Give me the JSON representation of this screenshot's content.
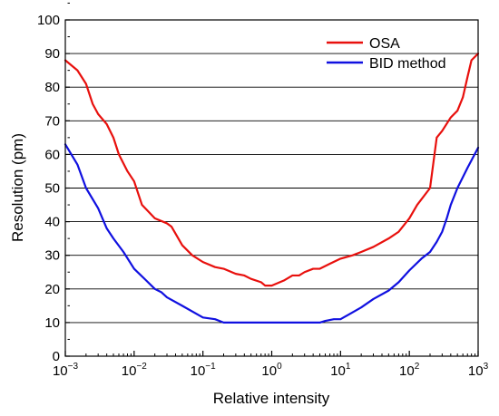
{
  "chart_data": {
    "type": "line",
    "title": "",
    "xlabel": "Relative intensity",
    "ylabel": "Resolution (pm)",
    "x_scale": "log",
    "xlim": [
      0.001,
      1000
    ],
    "ylim": [
      0,
      100
    ],
    "grid": "horizontal",
    "legend_position": "top-right",
    "x_ticks": [
      {
        "base": "10",
        "exp": "−3"
      },
      {
        "base": "10",
        "exp": "−2"
      },
      {
        "base": "10",
        "exp": "−1"
      },
      {
        "base": "10",
        "exp": "0"
      },
      {
        "base": "10",
        "exp": "1"
      },
      {
        "base": "10",
        "exp": "2"
      },
      {
        "base": "10",
        "exp": "3"
      }
    ],
    "y_ticks": [
      "0",
      "10",
      "20",
      "30",
      "40",
      "50",
      "60",
      "70",
      "80",
      "90",
      "100"
    ],
    "series": [
      {
        "name": "OSA",
        "color": "#e8100d",
        "points": [
          [
            0.001,
            88
          ],
          [
            0.0015,
            85
          ],
          [
            0.002,
            81
          ],
          [
            0.0025,
            75
          ],
          [
            0.003,
            72
          ],
          [
            0.004,
            69
          ],
          [
            0.005,
            65
          ],
          [
            0.006,
            60
          ],
          [
            0.008,
            55
          ],
          [
            0.01,
            52
          ],
          [
            0.013,
            45
          ],
          [
            0.02,
            41
          ],
          [
            0.03,
            39.5
          ],
          [
            0.035,
            38.5
          ],
          [
            0.05,
            33
          ],
          [
            0.07,
            30
          ],
          [
            0.1,
            28
          ],
          [
            0.15,
            26.5
          ],
          [
            0.2,
            26
          ],
          [
            0.3,
            24.5
          ],
          [
            0.4,
            24
          ],
          [
            0.5,
            23
          ],
          [
            0.7,
            22
          ],
          [
            0.8,
            21
          ],
          [
            1,
            21
          ],
          [
            1.5,
            22.5
          ],
          [
            2,
            24
          ],
          [
            2.5,
            24
          ],
          [
            3,
            25
          ],
          [
            4,
            26
          ],
          [
            5,
            26
          ],
          [
            7,
            27.5
          ],
          [
            10,
            29
          ],
          [
            15,
            30
          ],
          [
            20,
            31
          ],
          [
            30,
            32.5
          ],
          [
            50,
            35
          ],
          [
            70,
            37
          ],
          [
            100,
            41
          ],
          [
            130,
            45
          ],
          [
            200,
            50
          ],
          [
            250,
            65
          ],
          [
            300,
            67
          ],
          [
            400,
            71
          ],
          [
            500,
            73
          ],
          [
            600,
            77
          ],
          [
            700,
            83
          ],
          [
            800,
            88
          ],
          [
            1000,
            90
          ]
        ]
      },
      {
        "name": "BID method",
        "color": "#1010e0",
        "points": [
          [
            0.001,
            63
          ],
          [
            0.0015,
            57
          ],
          [
            0.002,
            50
          ],
          [
            0.003,
            44
          ],
          [
            0.004,
            38
          ],
          [
            0.005,
            35
          ],
          [
            0.007,
            31
          ],
          [
            0.01,
            26
          ],
          [
            0.015,
            22.5
          ],
          [
            0.02,
            20
          ],
          [
            0.025,
            19
          ],
          [
            0.03,
            17.5
          ],
          [
            0.05,
            15
          ],
          [
            0.1,
            11.5
          ],
          [
            0.15,
            11
          ],
          [
            0.2,
            10
          ],
          [
            1,
            10
          ],
          [
            5,
            10
          ],
          [
            6,
            10.5
          ],
          [
            8,
            11
          ],
          [
            10,
            11
          ],
          [
            20,
            14.5
          ],
          [
            30,
            17
          ],
          [
            50,
            19.5
          ],
          [
            70,
            22
          ],
          [
            100,
            25.5
          ],
          [
            150,
            29
          ],
          [
            200,
            31
          ],
          [
            250,
            34
          ],
          [
            300,
            37
          ],
          [
            350,
            41
          ],
          [
            400,
            45
          ],
          [
            500,
            50
          ],
          [
            700,
            56
          ],
          [
            1000,
            62
          ]
        ]
      }
    ]
  }
}
